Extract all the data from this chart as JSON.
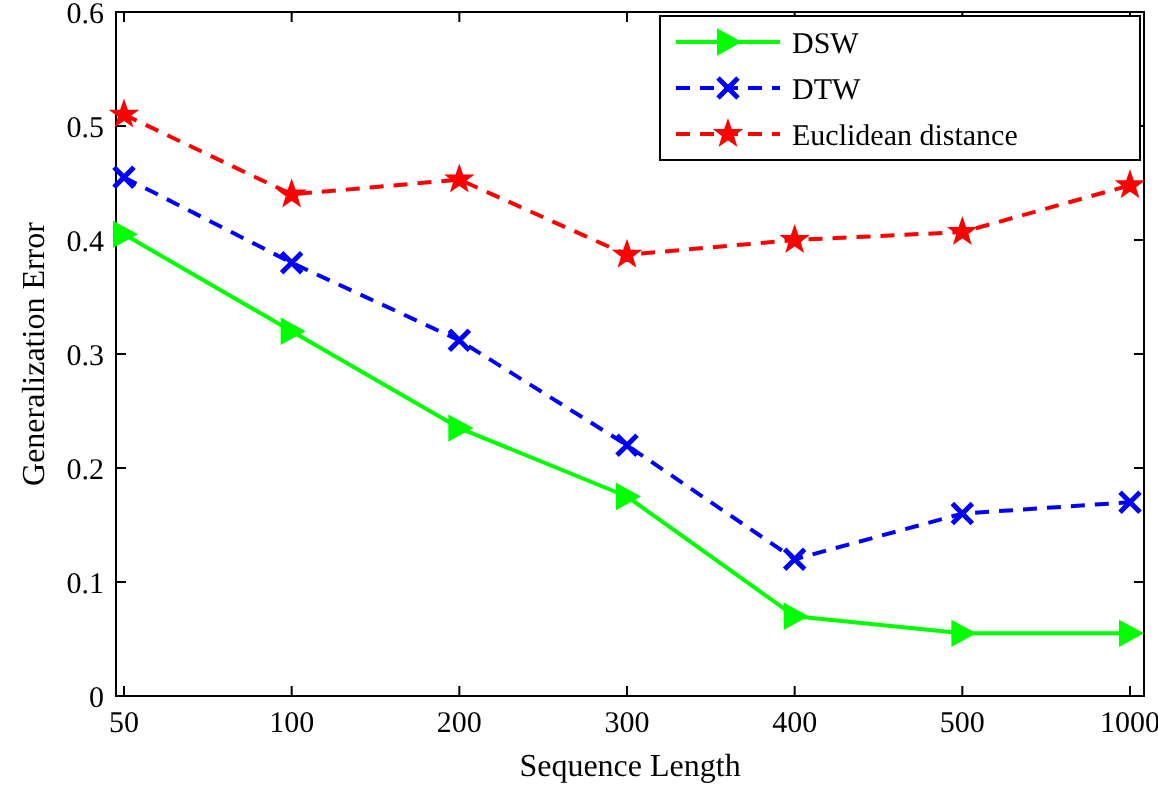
{
  "chart_data": {
    "type": "line",
    "xlabel": "Sequence Length",
    "ylabel": "Generalization Error",
    "categories": [
      "50",
      "100",
      "200",
      "300",
      "400",
      "500",
      "1000"
    ],
    "ylim": [
      0,
      0.6
    ],
    "yticks": [
      0,
      0.1,
      0.2,
      0.3,
      0.4,
      0.5,
      0.6
    ],
    "grid": false,
    "legend": "top right",
    "series": [
      {
        "name": "DSW",
        "color": "#00ff00",
        "marker": "triangle",
        "line_style": "solid",
        "values": [
          0.405,
          0.32,
          0.235,
          0.175,
          0.07,
          0.055,
          0.055
        ]
      },
      {
        "name": "DTW",
        "color": "#0000ff",
        "marker": "cross",
        "line_style": "dashed",
        "values": [
          0.455,
          0.38,
          0.312,
          0.22,
          0.12,
          0.16,
          0.17
        ]
      },
      {
        "name": "Euclidean distance",
        "color": "#ff0000",
        "marker": "star",
        "line_style": "dashed",
        "values": [
          0.51,
          0.44,
          0.453,
          0.387,
          0.4,
          0.407,
          0.448
        ]
      }
    ]
  }
}
